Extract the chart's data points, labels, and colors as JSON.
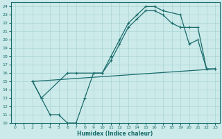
{
  "xlabel": "Humidex (Indice chaleur)",
  "bg_color": "#cceaea",
  "line_color": "#1a6b6b",
  "grid_color": "#aad4d4",
  "xlim": [
    -0.5,
    23.5
  ],
  "ylim": [
    10,
    24.5
  ],
  "xticks": [
    0,
    1,
    2,
    3,
    4,
    5,
    6,
    7,
    8,
    9,
    10,
    11,
    12,
    13,
    14,
    15,
    16,
    17,
    18,
    19,
    20,
    21,
    22,
    23
  ],
  "yticks": [
    10,
    11,
    12,
    13,
    14,
    15,
    16,
    17,
    18,
    19,
    20,
    21,
    22,
    23,
    24
  ],
  "line1_x": [
    2,
    3,
    4,
    5,
    6,
    7,
    8,
    9,
    10,
    11,
    12,
    13,
    14,
    15,
    16,
    17,
    19,
    20,
    21,
    22,
    23
  ],
  "line1_y": [
    15,
    13,
    11,
    11,
    10,
    10,
    13,
    16,
    16,
    18,
    20,
    22,
    23,
    24,
    24,
    23.5,
    23,
    19.5,
    20,
    16.5,
    16.5
  ],
  "line2_x": [
    2,
    3,
    6,
    7,
    10,
    11,
    12,
    13,
    14,
    15,
    16,
    17,
    18,
    19,
    20,
    21,
    22,
    23
  ],
  "line2_y": [
    15,
    13,
    16,
    16,
    16,
    17.5,
    19.5,
    21.5,
    22.5,
    23.5,
    23.5,
    23,
    22,
    21.5,
    21.5,
    21.5,
    16.5,
    16.5
  ],
  "line3_x": [
    2,
    23
  ],
  "line3_y": [
    15,
    16.5
  ]
}
